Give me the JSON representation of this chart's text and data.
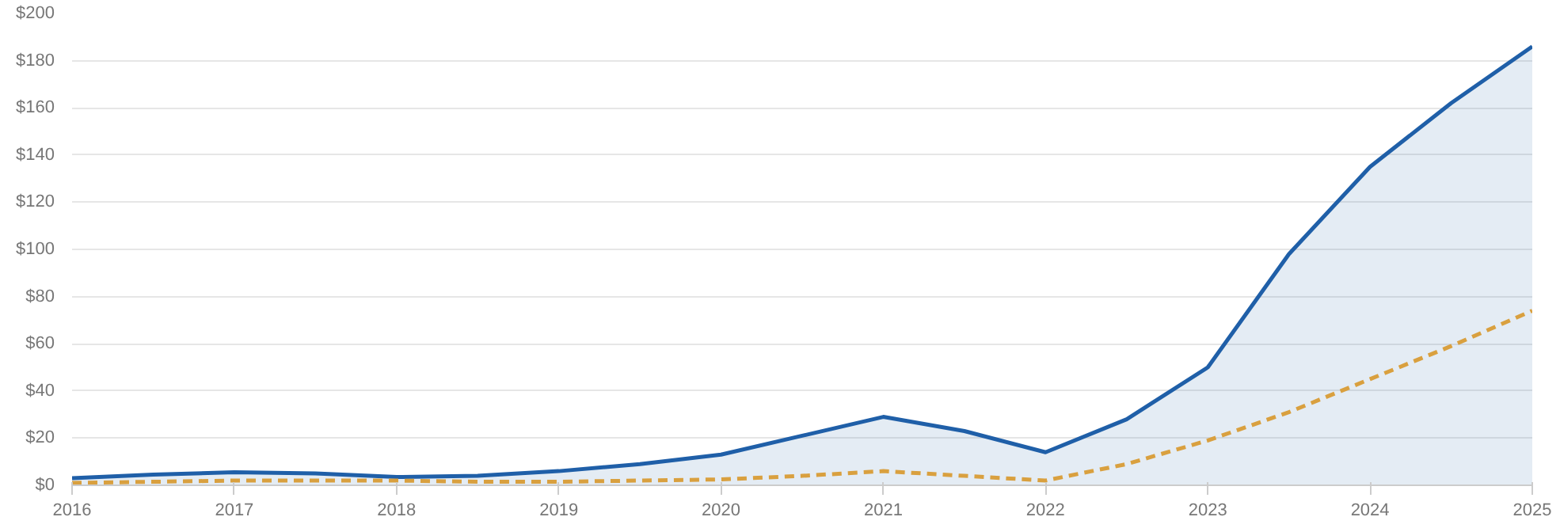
{
  "chart_data": {
    "type": "line",
    "x": [
      2016,
      2016.5,
      2017,
      2017.5,
      2018,
      2018.5,
      2019,
      2019.5,
      2020,
      2020.5,
      2021,
      2021.5,
      2022,
      2022.5,
      2023,
      2023.5,
      2024,
      2024.5,
      2025
    ],
    "series": [
      {
        "type": "area",
        "color": "#1f5fa8",
        "line_style": "solid",
        "values": [
          3,
          4.5,
          5.5,
          5,
          3.5,
          4,
          6,
          9,
          13,
          21,
          29,
          23,
          14,
          28,
          50,
          98,
          135,
          162,
          186
        ]
      },
      {
        "color": "#d9a03f",
        "line_style": "dashed",
        "values": [
          1,
          1.5,
          2,
          2,
          2,
          1.5,
          1.5,
          2,
          2.5,
          4,
          6,
          4,
          2,
          9,
          19,
          31,
          45,
          59,
          74
        ]
      }
    ],
    "xlim": [
      2016,
      2025
    ],
    "xticks": [
      2016,
      2017,
      2018,
      2019,
      2020,
      2021,
      2022,
      2023,
      2024,
      2025
    ],
    "ylim": [
      0,
      200
    ],
    "yticks": [
      {
        "value": 0,
        "label": "$0"
      },
      {
        "value": 20,
        "label": "$20"
      },
      {
        "value": 40,
        "label": "$40"
      },
      {
        "value": 60,
        "label": "$60"
      },
      {
        "value": 80,
        "label": "$80"
      },
      {
        "value": 100,
        "label": "$100"
      },
      {
        "value": 120,
        "label": "$120"
      },
      {
        "value": 140,
        "label": "$140"
      },
      {
        "value": 160,
        "label": "$160"
      },
      {
        "value": 180,
        "label": "$180"
      },
      {
        "value": 200,
        "label": "$200"
      }
    ],
    "grid": "y",
    "marker": "none"
  }
}
